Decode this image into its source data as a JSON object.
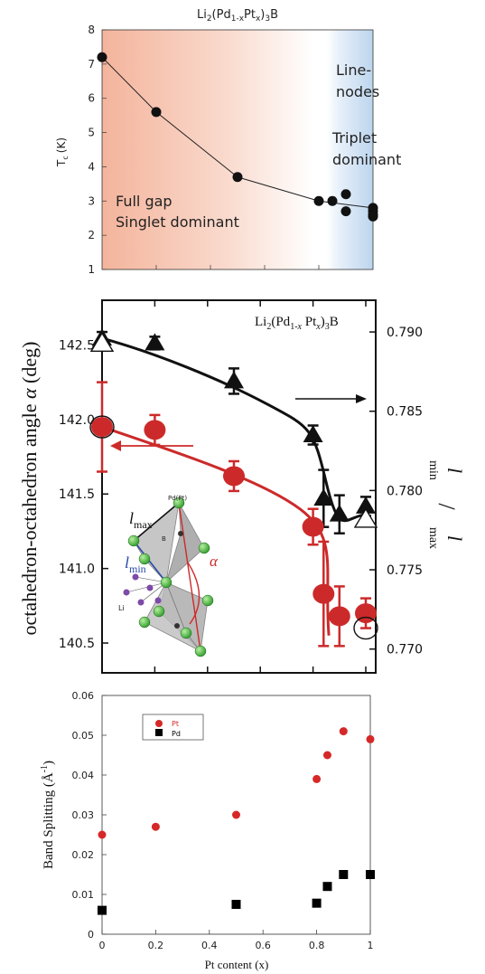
{
  "colors": {
    "red": "#cc2a2a",
    "black": "#111111",
    "pt": "#d62828",
    "pd": "#000000",
    "gap_bg": "#f4b8a0",
    "node_bg": "#c4daf0"
  },
  "chart_data": [
    {
      "type": "line",
      "title_parts": {
        "a": "Li",
        "b": "2",
        "c": "(Pd",
        "d": "1-x",
        "e": "Pt",
        "f": "x",
        "g": ")",
        "h": "3",
        "i": "B"
      },
      "ylabel_parts": {
        "main": "T",
        "sub": "c",
        "unit": "(K)"
      },
      "xlim": [
        0,
        1
      ],
      "ylim": [
        1,
        8
      ],
      "y_ticks": [
        1,
        2,
        3,
        4,
        5,
        6,
        7,
        8
      ],
      "grid": false,
      "series": [
        {
          "line_x": [
            0,
            0.2,
            0.5,
            0.8,
            1.0
          ],
          "line_y": [
            7.2,
            5.6,
            3.7,
            3.0,
            2.8
          ],
          "x": [
            0,
            0.2,
            0.5,
            0.8,
            0.85,
            0.9,
            0.9,
            1.0,
            1.0,
            1.0,
            1.0
          ],
          "y": [
            7.2,
            5.6,
            3.7,
            3.0,
            3.0,
            3.2,
            2.7,
            2.8,
            2.7,
            2.6,
            2.55
          ]
        }
      ],
      "annotations": {
        "full_gap": "Full gap",
        "singlet": "Singlet dominant",
        "line": "Line-",
        "nodes": "nodes",
        "triplet": "Triplet",
        "dominant": "dominant"
      },
      "regions": [
        {
          "name": "full gap",
          "x": [
            0,
            0.85
          ]
        },
        {
          "name": "line nodes",
          "x": [
            0.85,
            1.0
          ]
        }
      ]
    },
    {
      "type": "line",
      "title_parts": {
        "a": "Li",
        "b": "2",
        "c": "(Pd",
        "d": "1-",
        "e": "x",
        "f": " Pt",
        "g": "x",
        "h": ")",
        "i": "3",
        "j": "B"
      },
      "ylabel_left": "octahedron-octahedron angle ",
      "ylabel_left_sym": "α",
      "ylabel_left_unit": " (deg)",
      "ylabel_right_parts": {
        "l1": "l",
        "min": "min",
        "slash": "/",
        "l2": "l",
        "max": "max"
      },
      "xlim": [
        0,
        1
      ],
      "ylim_left": [
        140.3,
        142.8
      ],
      "ylim_right": [
        0.7685,
        0.792
      ],
      "y_ticks_left": [
        "140.5",
        "141.0",
        "141.5",
        "142.0",
        "142.5"
      ],
      "y_ticks_right": [
        "0.770",
        "0.775",
        "0.780",
        "0.785",
        "0.790"
      ],
      "series": [
        {
          "name": "alpha",
          "axis": "left",
          "x": [
            0,
            0.2,
            0.5,
            0.8,
            0.84,
            0.9,
            1.0
          ],
          "y": [
            141.95,
            141.93,
            141.62,
            141.28,
            140.83,
            140.68,
            140.7
          ],
          "err": [
            0.3,
            0.1,
            0.1,
            0.12,
            0.35,
            0.2,
            0.1
          ]
        },
        {
          "name": "lmin/lmax",
          "axis": "right",
          "x": [
            0,
            0.2,
            0.5,
            0.8,
            0.84,
            0.9,
            1.0
          ],
          "y": [
            0.7896,
            0.7893,
            0.7869,
            0.7835,
            0.7795,
            0.7785,
            0.779
          ],
          "err": [
            0.0004,
            0.0004,
            0.0008,
            0.0006,
            0.0018,
            0.0012,
            0.0006
          ]
        }
      ],
      "open_markers": {
        "circle": [
          [
            0,
            141.95
          ],
          [
            1.0,
            140.6
          ]
        ],
        "triangle": [
          [
            0,
            0.7893
          ],
          [
            1.0,
            0.7782
          ]
        ]
      },
      "inset_labels": {
        "lmax": "l",
        "lmax_sub": "max",
        "lmin": "l",
        "lmin_sub": "min",
        "site": "Pd(Pt)",
        "b": "B",
        "li": "Li",
        "alpha": "α"
      }
    },
    {
      "type": "scatter",
      "xlabel": "Pt content (x)",
      "ylabel_parts": {
        "a": "Band Splitting (",
        "b": "Å",
        "c": "-1",
        "d": ")"
      },
      "xlim": [
        0,
        1
      ],
      "ylim": [
        0,
        0.06
      ],
      "x_ticks": [
        "0",
        "0.2",
        "0.4",
        "0.6",
        "0.8",
        "1"
      ],
      "y_ticks": [
        "0",
        "0.01",
        "0.02",
        "0.03",
        "0.04",
        "0.05",
        "0.06"
      ],
      "legend": "top-left",
      "series": [
        {
          "name": "Pt",
          "x": [
            0,
            0.2,
            0.5,
            0.8,
            0.84,
            0.9,
            1.0
          ],
          "y": [
            0.025,
            0.027,
            0.03,
            0.039,
            0.045,
            0.051,
            0.049
          ]
        },
        {
          "name": "Pd",
          "x": [
            0,
            0.5,
            0.8,
            0.84,
            0.9,
            1.0
          ],
          "y": [
            0.006,
            0.0075,
            0.0078,
            0.012,
            0.015,
            0.015
          ]
        }
      ]
    }
  ]
}
